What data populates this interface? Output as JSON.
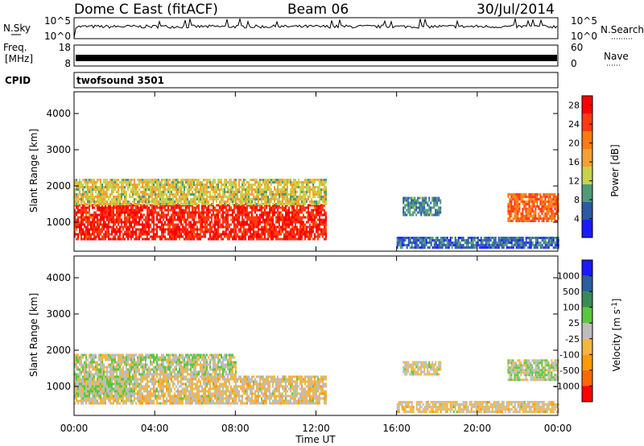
{
  "header": {
    "site": "Dome C East (fitACF)",
    "beam": "Beam 06",
    "date": "30/Jul/2014"
  },
  "strip_nsky": {
    "left_label": "N.Sky",
    "right_label": "N.Search",
    "ticks_left": [
      "10^5",
      "10^0"
    ],
    "ticks_right": [
      "10^5",
      "10^0"
    ]
  },
  "strip_freq": {
    "left_label_1": "Freq.",
    "left_label_2": "[MHz]",
    "ticks_left": [
      "18",
      "8"
    ],
    "right_label": "Nave",
    "ticks_right": [
      "60",
      "0"
    ]
  },
  "strip_cpid": {
    "left_label": "CPID",
    "program": "twofsound 3501"
  },
  "x_axis": {
    "label": "Time UT",
    "ticks": [
      "00:00",
      "04:00",
      "08:00",
      "12:00",
      "16:00",
      "20:00",
      "00:00"
    ]
  },
  "colors": {
    "power": [
      "#1a1aff",
      "#2a5aa8",
      "#4f9a7a",
      "#c8d24a",
      "#f5a030",
      "#ff7a10",
      "#ff3a10",
      "#ff0000"
    ],
    "velocity": [
      "#ff0000",
      "#ff6a00",
      "#ff9a00",
      "#f5b640",
      "#bdbdbd",
      "#5ac83c",
      "#3a8a58",
      "#2a60a0",
      "#1a1aff"
    ]
  },
  "chart_data": [
    {
      "type": "heatmap",
      "title": "",
      "ylabel": "Slant Range [km]",
      "xlabel": "",
      "ylim": [
        200,
        4600
      ],
      "xlim_hours": [
        0,
        24
      ],
      "y_ticks": [
        "1000",
        "2000",
        "3000",
        "4000"
      ],
      "colorbar": {
        "label": "Power [dB]",
        "ticks": [
          "4",
          "8",
          "12",
          "16",
          "20",
          "24",
          "28"
        ],
        "range": [
          0,
          30
        ]
      },
      "regions": [
        {
          "t": [
            0,
            12.5
          ],
          "r": [
            500,
            1500
          ],
          "value": "26"
        },
        {
          "t": [
            0,
            12.5
          ],
          "r": [
            1500,
            2200
          ],
          "value": "14"
        },
        {
          "t": [
            16.3,
            18.2
          ],
          "r": [
            1200,
            1700
          ],
          "value": "8"
        },
        {
          "t": [
            21.5,
            24
          ],
          "r": [
            1000,
            1800
          ],
          "value": "22"
        },
        {
          "t": [
            16,
            24
          ],
          "r": [
            300,
            600
          ],
          "value": "6"
        }
      ]
    },
    {
      "type": "heatmap",
      "title": "",
      "ylabel": "Slant Range [km]",
      "xlabel": "Time UT",
      "ylim": [
        200,
        4600
      ],
      "xlim_hours": [
        0,
        24
      ],
      "y_ticks": [
        "1000",
        "2000",
        "3000",
        "4000"
      ],
      "colorbar": {
        "label": "Velocity [m s^-1]",
        "ticks": [
          "1000",
          "500",
          "100",
          "25",
          "-25",
          "-100",
          "-500",
          "-1000"
        ],
        "range": [
          -1200,
          1200
        ]
      },
      "regions": [
        {
          "t": [
            0,
            12.5
          ],
          "r": [
            500,
            1300
          ],
          "value": "-150"
        },
        {
          "t": [
            0,
            8
          ],
          "r": [
            1300,
            1900
          ],
          "value": "0"
        },
        {
          "t": [
            0,
            3
          ],
          "r": [
            700,
            1300
          ],
          "value": "80"
        },
        {
          "t": [
            16.3,
            18.2
          ],
          "r": [
            1300,
            1700
          ],
          "value": "-100"
        },
        {
          "t": [
            21.5,
            24
          ],
          "r": [
            1200,
            1750
          ],
          "value": "50"
        },
        {
          "t": [
            16,
            24
          ],
          "r": [
            300,
            600
          ],
          "value": "-150"
        }
      ]
    }
  ]
}
